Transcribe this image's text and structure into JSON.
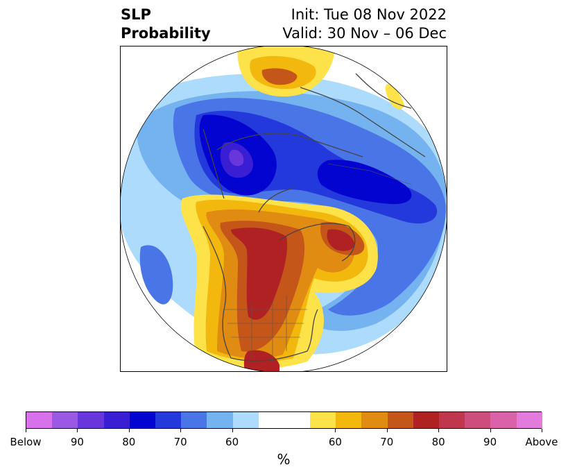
{
  "title": {
    "line1": "SLP",
    "line2": "Probability",
    "init": "Init: Tue 08 Nov 2022",
    "valid": "Valid: 30 Nov – 06 Dec"
  },
  "colorbar": {
    "unit": "%",
    "labels": [
      "Below",
      "90",
      "80",
      "70",
      "60",
      "60",
      "70",
      "80",
      "90",
      "Above"
    ],
    "colors": [
      "#d771ec",
      "#9b58e3",
      "#6936db",
      "#3a1ed4",
      "#0404d0",
      "#2439dc",
      "#4a75e6",
      "#75b2f0",
      "#acdbfb",
      "#ffffff",
      "#fde24a",
      "#f3b80d",
      "#e08b11",
      "#c4561a",
      "#b02123",
      "#c0364d",
      "#cc4e7c",
      "#d962a8",
      "#e27bdc"
    ]
  },
  "map": {
    "projection": "north-polar-stereographic",
    "legend_placement": "bottom"
  }
}
